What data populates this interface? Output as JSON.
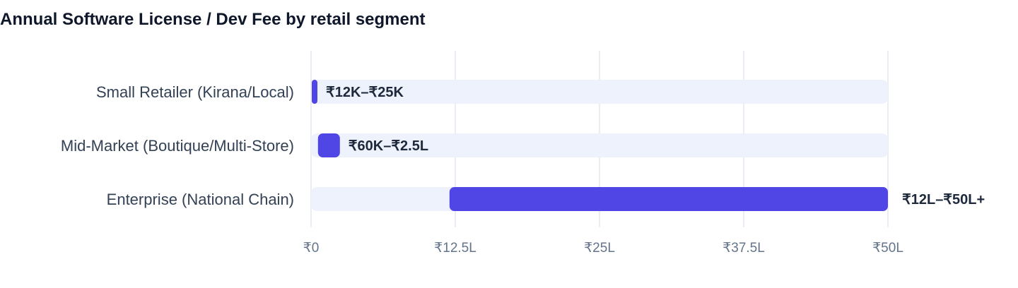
{
  "chart_data": {
    "type": "bar",
    "orientation": "horizontal",
    "title": "Annual Software License / Dev Fee by retail segment",
    "xlabel": "",
    "ylabel": "",
    "xlim": [
      0,
      5000000
    ],
    "categories": [
      "Small Retailer (Kirana/Local)",
      "Mid-Market (Boutique/Multi-Store)",
      "Enterprise (National Chain)"
    ],
    "ranges": [
      [
        12000,
        25000
      ],
      [
        60000,
        250000
      ],
      [
        1200000,
        5000000
      ]
    ],
    "data_labels": [
      "₹12K–₹25K",
      "₹60K–₹2.5L",
      "₹12L–₹50L+"
    ],
    "x_ticks": [
      {
        "value": 0,
        "label": "₹0"
      },
      {
        "value": 1250000,
        "label": "₹12.5L"
      },
      {
        "value": 2500000,
        "label": "₹25L"
      },
      {
        "value": 3750000,
        "label": "₹37.5L"
      },
      {
        "value": 5000000,
        "label": "₹50L"
      }
    ],
    "grid": true,
    "legend": "none",
    "colors": {
      "bar": "#5046e5",
      "track": "#eef2fd",
      "grid": "#e2e8f0"
    }
  }
}
